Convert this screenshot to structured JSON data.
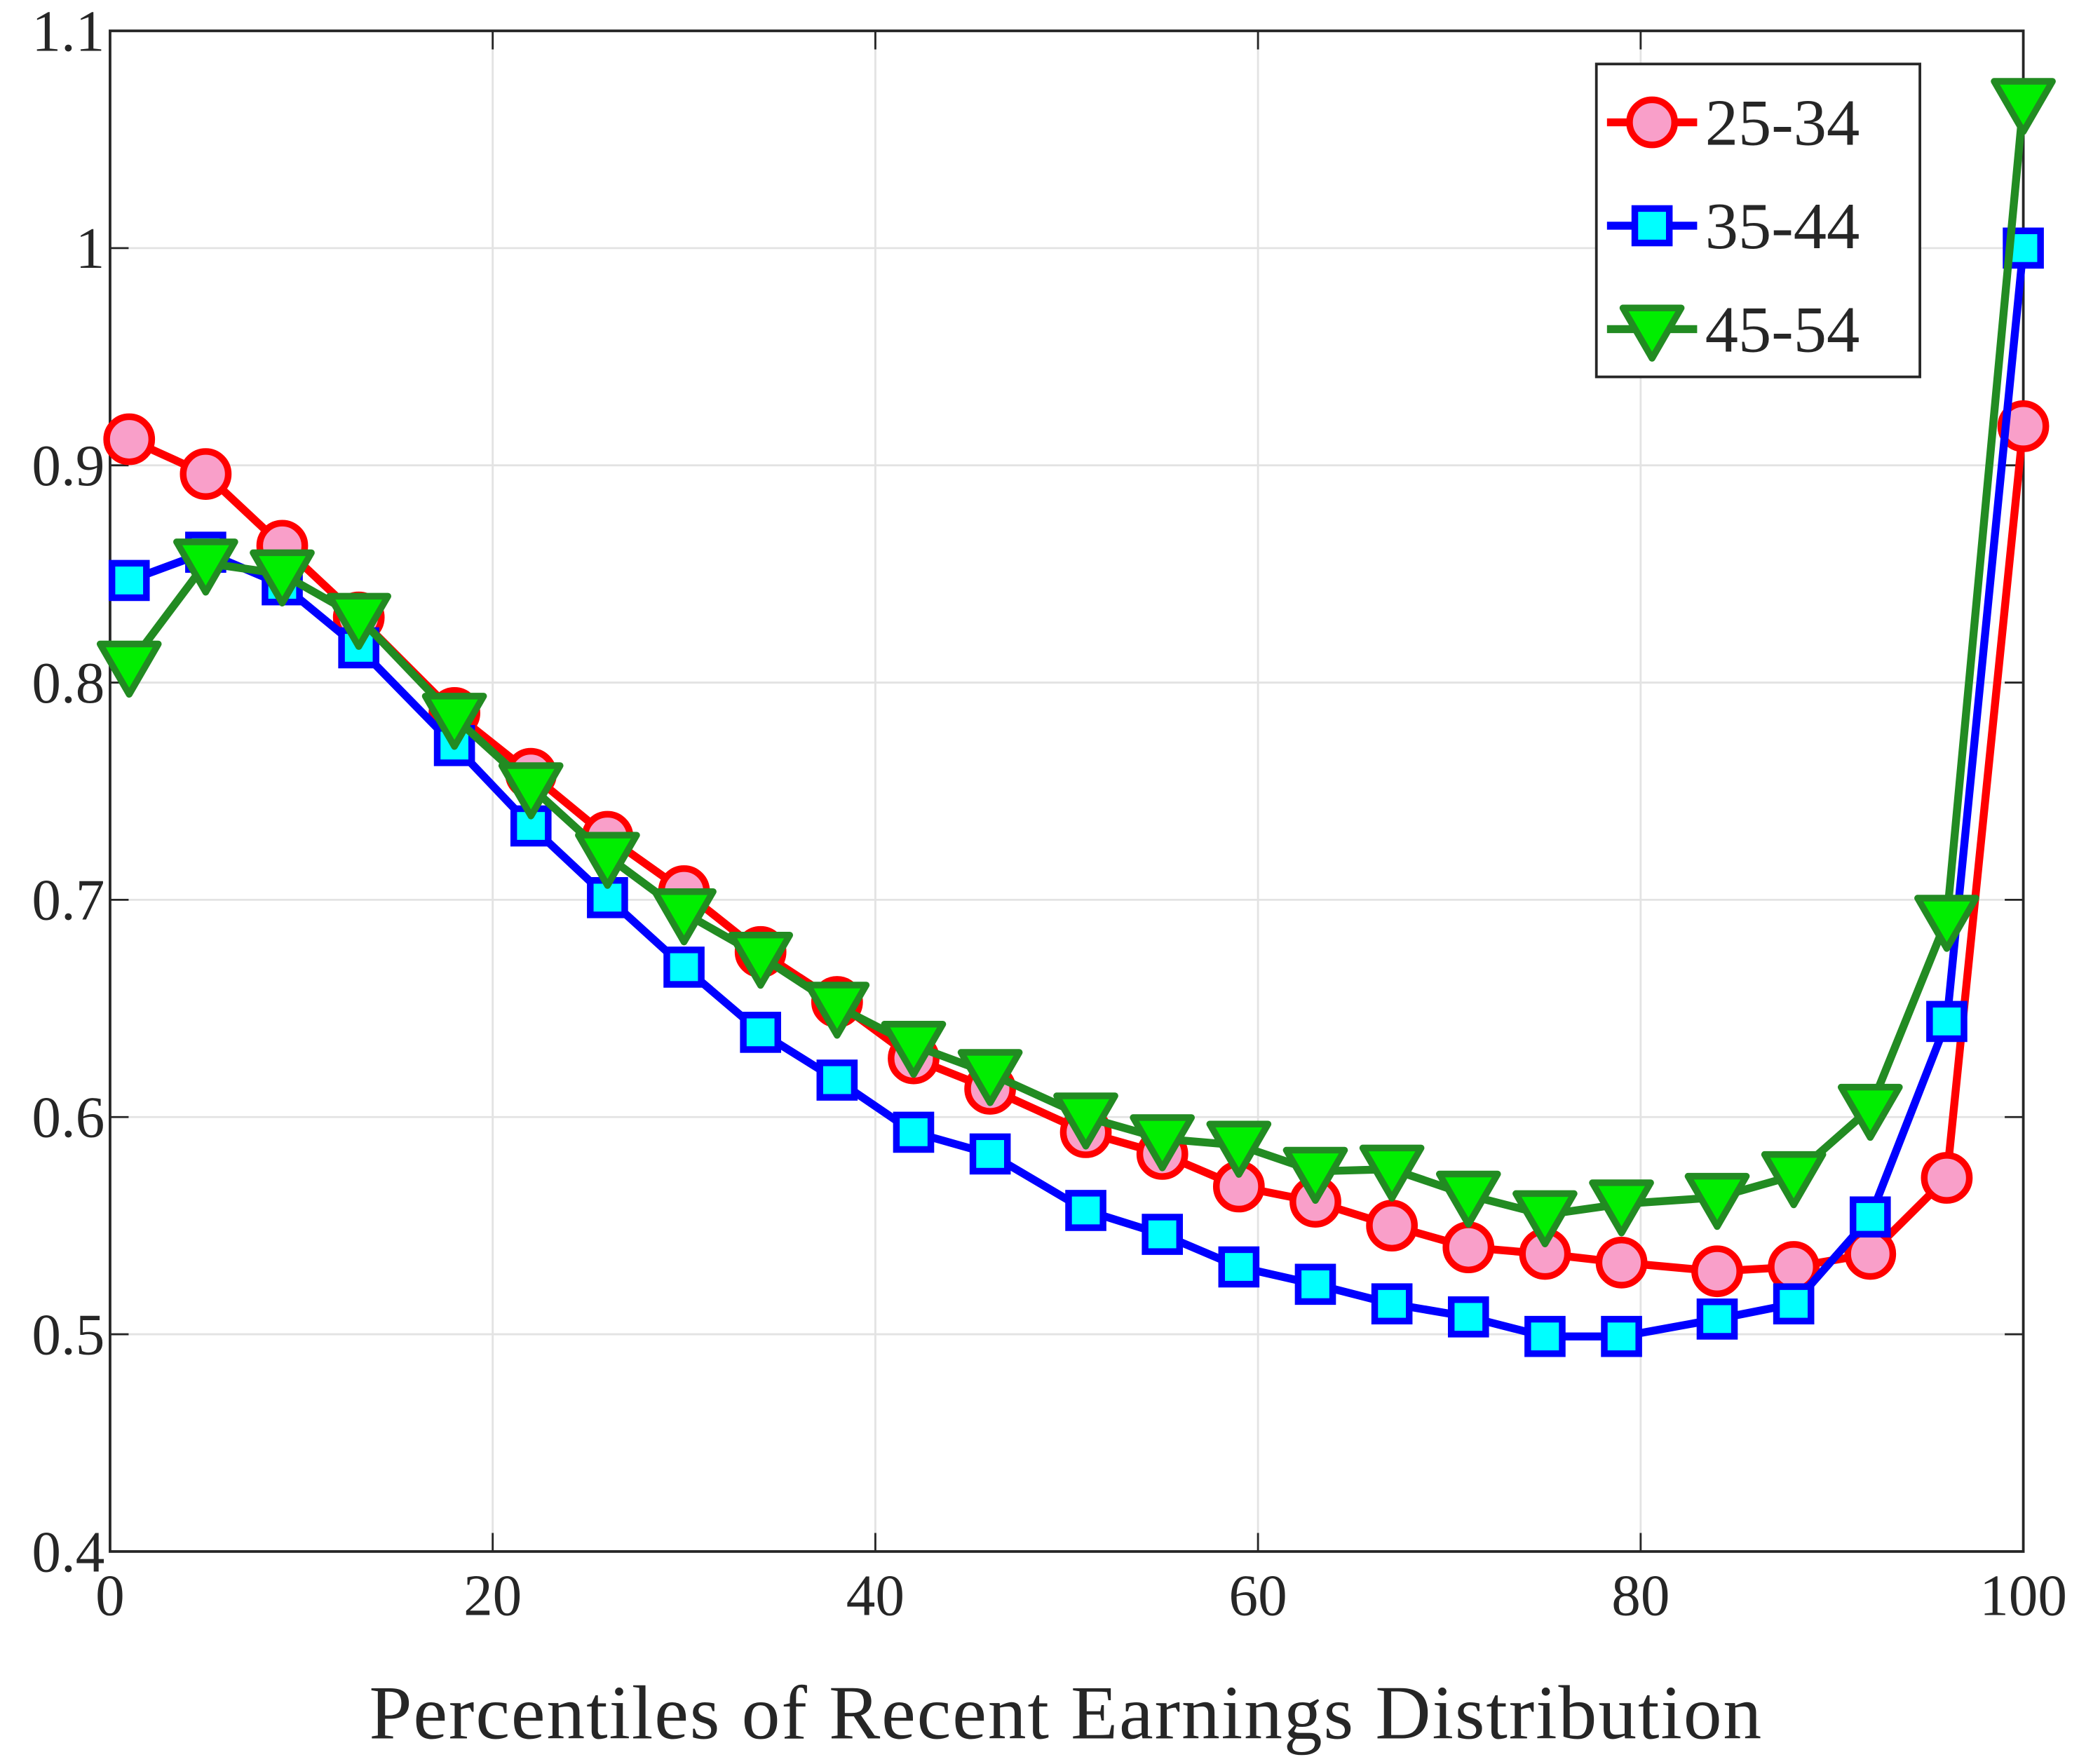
{
  "chart_data": {
    "type": "line",
    "xlabel": "Percentiles of Recent Earnings Distribution",
    "x": [
      1,
      5,
      9,
      13,
      18,
      22,
      26,
      30,
      34,
      38,
      42,
      46,
      51,
      55,
      59,
      63,
      67,
      71,
      75,
      79,
      84,
      88,
      92,
      96,
      100
    ],
    "series": [
      {
        "name": "25-34",
        "color": "#ff0000",
        "marker": "circle",
        "marker_fill": "#f99fc9",
        "values": [
          0.912,
          0.896,
          0.863,
          0.83,
          0.786,
          0.758,
          0.729,
          0.704,
          0.676,
          0.653,
          0.627,
          0.613,
          0.593,
          0.583,
          0.568,
          0.561,
          0.55,
          0.54,
          0.537,
          0.533,
          0.529,
          0.531,
          0.537,
          0.572,
          0.918
        ]
      },
      {
        "name": "35-44",
        "color": "#0000ff",
        "marker": "square",
        "marker_fill": "#00ffff",
        "values": [
          0.847,
          0.86,
          0.845,
          0.816,
          0.771,
          0.734,
          0.701,
          0.669,
          0.639,
          0.617,
          0.593,
          0.583,
          0.557,
          0.546,
          0.531,
          0.523,
          0.514,
          0.508,
          0.499,
          0.499,
          0.507,
          0.514,
          0.554,
          0.644,
          1.0
        ]
      },
      {
        "name": "45-54",
        "color": "#228b22",
        "marker": "triangle-down",
        "marker_fill": "#00ee00",
        "values": [
          0.808,
          0.855,
          0.85,
          0.83,
          0.784,
          0.752,
          0.72,
          0.694,
          0.674,
          0.651,
          0.633,
          0.62,
          0.6,
          0.59,
          0.587,
          0.575,
          0.576,
          0.564,
          0.555,
          0.56,
          0.563,
          0.573,
          0.604,
          0.691,
          1.067
        ]
      }
    ],
    "xlim": [
      0,
      100
    ],
    "xticks": [
      0,
      20,
      40,
      60,
      80,
      100
    ],
    "ylim": [
      0.4,
      1.1
    ],
    "yticks": [
      0.4,
      0.5,
      0.6,
      0.7,
      0.8,
      0.9,
      1,
      1.1
    ],
    "grid": true,
    "legend": "upper right"
  }
}
